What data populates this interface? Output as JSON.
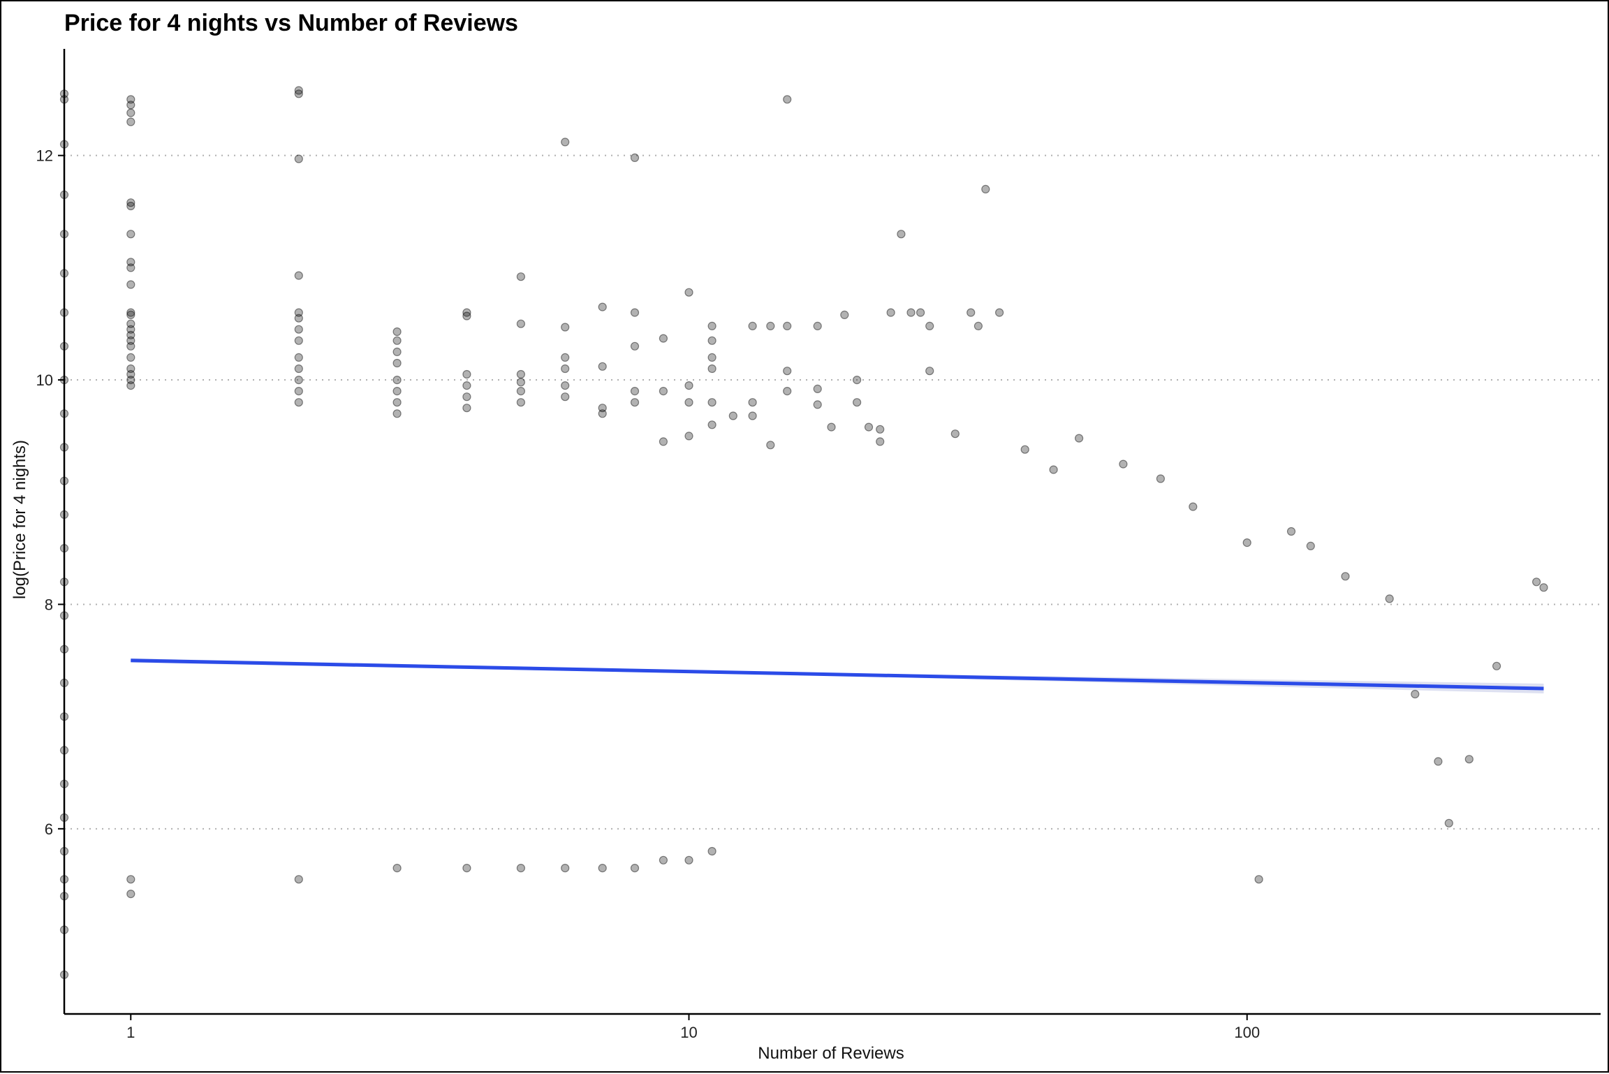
{
  "chart_data": {
    "type": "scatter",
    "title": "Price for 4 nights vs Number of Reviews",
    "xlabel": "Number of Reviews",
    "ylabel": "log(Price for 4 nights)",
    "x_scale": "log10",
    "xlim": [
      0.76,
      430
    ],
    "ylim": [
      4.35,
      12.95
    ],
    "x_ticks": [
      {
        "value": 1,
        "label": "1"
      },
      {
        "value": 10,
        "label": "10"
      },
      {
        "value": 100,
        "label": "100"
      }
    ],
    "y_ticks": [
      {
        "value": 6,
        "label": "6"
      },
      {
        "value": 8,
        "label": "8"
      },
      {
        "value": 10,
        "label": "10"
      },
      {
        "value": 12,
        "label": "12"
      }
    ],
    "grid": "horizontal-dotted",
    "point_color": "#000000",
    "point_opacity": 0.3,
    "trend_line": {
      "x": [
        1,
        340
      ],
      "y": [
        7.5,
        7.25
      ],
      "color": "#2B4BE8"
    },
    "points": [
      [
        0.76,
        12.55
      ],
      [
        0.76,
        12.5
      ],
      [
        0.76,
        12.1
      ],
      [
        0.76,
        11.65
      ],
      [
        0.76,
        11.3
      ],
      [
        0.76,
        10.95
      ],
      [
        0.76,
        10.6
      ],
      [
        0.76,
        10.3
      ],
      [
        0.76,
        10.0
      ],
      [
        0.76,
        9.7
      ],
      [
        0.76,
        9.4
      ],
      [
        0.76,
        9.1
      ],
      [
        0.76,
        8.8
      ],
      [
        0.76,
        8.5
      ],
      [
        0.76,
        8.2
      ],
      [
        0.76,
        7.9
      ],
      [
        0.76,
        7.6
      ],
      [
        0.76,
        7.3
      ],
      [
        0.76,
        7.0
      ],
      [
        0.76,
        6.7
      ],
      [
        0.76,
        6.4
      ],
      [
        0.76,
        6.1
      ],
      [
        0.76,
        5.8
      ],
      [
        0.76,
        5.55
      ],
      [
        0.76,
        5.4
      ],
      [
        0.76,
        5.1
      ],
      [
        0.76,
        4.7
      ],
      [
        1,
        12.5
      ],
      [
        1,
        12.45
      ],
      [
        1,
        12.38
      ],
      [
        1,
        12.3
      ],
      [
        1,
        11.58
      ],
      [
        1,
        11.55
      ],
      [
        1,
        11.3
      ],
      [
        1,
        11.05
      ],
      [
        1,
        11.0
      ],
      [
        1,
        10.85
      ],
      [
        1,
        10.6
      ],
      [
        1,
        10.58
      ],
      [
        1,
        10.5
      ],
      [
        1,
        10.45
      ],
      [
        1,
        10.4
      ],
      [
        1,
        10.35
      ],
      [
        1,
        10.3
      ],
      [
        1,
        10.2
      ],
      [
        1,
        10.1
      ],
      [
        1,
        10.05
      ],
      [
        1,
        10.0
      ],
      [
        1,
        9.95
      ],
      [
        1,
        5.55
      ],
      [
        1,
        5.42
      ],
      [
        2,
        12.58
      ],
      [
        2,
        12.55
      ],
      [
        2,
        11.97
      ],
      [
        2,
        10.93
      ],
      [
        2,
        10.6
      ],
      [
        2,
        10.55
      ],
      [
        2,
        10.45
      ],
      [
        2,
        10.35
      ],
      [
        2,
        10.2
      ],
      [
        2,
        10.1
      ],
      [
        2,
        10.0
      ],
      [
        2,
        9.9
      ],
      [
        2,
        9.8
      ],
      [
        2,
        5.55
      ],
      [
        3,
        10.43
      ],
      [
        3,
        10.35
      ],
      [
        3,
        10.25
      ],
      [
        3,
        10.15
      ],
      [
        3,
        10.0
      ],
      [
        3,
        9.9
      ],
      [
        3,
        9.8
      ],
      [
        3,
        9.7
      ],
      [
        3,
        5.65
      ],
      [
        4,
        10.6
      ],
      [
        4,
        10.57
      ],
      [
        4,
        10.05
      ],
      [
        4,
        9.95
      ],
      [
        4,
        9.85
      ],
      [
        4,
        9.75
      ],
      [
        4,
        5.65
      ],
      [
        5,
        10.92
      ],
      [
        5,
        10.5
      ],
      [
        5,
        10.05
      ],
      [
        5,
        9.98
      ],
      [
        5,
        9.9
      ],
      [
        5,
        9.8
      ],
      [
        5,
        5.65
      ],
      [
        6,
        12.12
      ],
      [
        6,
        10.47
      ],
      [
        6,
        10.2
      ],
      [
        6,
        10.1
      ],
      [
        6,
        9.95
      ],
      [
        6,
        9.85
      ],
      [
        6,
        5.65
      ],
      [
        7,
        10.65
      ],
      [
        7,
        10.12
      ],
      [
        7,
        9.75
      ],
      [
        7,
        9.7
      ],
      [
        7,
        5.65
      ],
      [
        8,
        11.98
      ],
      [
        8,
        10.6
      ],
      [
        8,
        10.3
      ],
      [
        8,
        9.9
      ],
      [
        8,
        9.8
      ],
      [
        8,
        5.65
      ],
      [
        9,
        10.37
      ],
      [
        9,
        9.9
      ],
      [
        9,
        9.45
      ],
      [
        9,
        5.72
      ],
      [
        10,
        10.78
      ],
      [
        10,
        9.95
      ],
      [
        10,
        9.8
      ],
      [
        10,
        9.5
      ],
      [
        10,
        5.72
      ],
      [
        11,
        10.48
      ],
      [
        11,
        10.35
      ],
      [
        11,
        10.2
      ],
      [
        11,
        10.1
      ],
      [
        11,
        9.8
      ],
      [
        11,
        9.6
      ],
      [
        11,
        5.8
      ],
      [
        12,
        9.68
      ],
      [
        13,
        10.48
      ],
      [
        13,
        9.8
      ],
      [
        13,
        9.68
      ],
      [
        14,
        10.48
      ],
      [
        14,
        9.42
      ],
      [
        15,
        10.48
      ],
      [
        15,
        10.08
      ],
      [
        15,
        9.9
      ],
      [
        15,
        12.5
      ],
      [
        17,
        10.48
      ],
      [
        17,
        9.92
      ],
      [
        17,
        9.78
      ],
      [
        18,
        9.58
      ],
      [
        19,
        10.58
      ],
      [
        20,
        10.0
      ],
      [
        20,
        9.8
      ],
      [
        21,
        9.58
      ],
      [
        22,
        9.45
      ],
      [
        22,
        9.56
      ],
      [
        23,
        10.6
      ],
      [
        24,
        11.3
      ],
      [
        25,
        10.6
      ],
      [
        26,
        10.6
      ],
      [
        27,
        10.48
      ],
      [
        27,
        10.08
      ],
      [
        30,
        9.52
      ],
      [
        32,
        10.6
      ],
      [
        33,
        10.48
      ],
      [
        34,
        11.7
      ],
      [
        36,
        10.6
      ],
      [
        40,
        9.38
      ],
      [
        45,
        9.2
      ],
      [
        50,
        9.48
      ],
      [
        60,
        9.25
      ],
      [
        70,
        9.12
      ],
      [
        80,
        8.87
      ],
      [
        100,
        8.55
      ],
      [
        105,
        5.55
      ],
      [
        120,
        8.65
      ],
      [
        130,
        8.52
      ],
      [
        150,
        8.25
      ],
      [
        180,
        8.05
      ],
      [
        200,
        7.2
      ],
      [
        220,
        6.6
      ],
      [
        230,
        6.05
      ],
      [
        250,
        6.62
      ],
      [
        280,
        7.45
      ],
      [
        330,
        8.2
      ],
      [
        340,
        8.15
      ]
    ]
  }
}
